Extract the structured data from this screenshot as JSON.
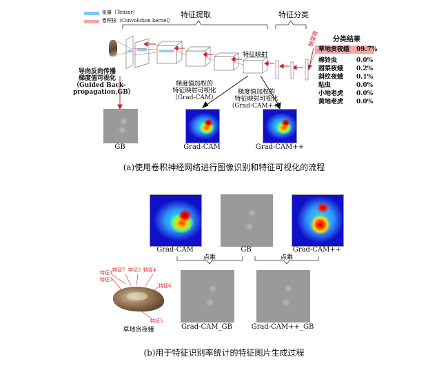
{
  "legend": {
    "tensor": "张量（Tensor）",
    "kernel": "卷积核（Convolution kernel）",
    "tensor_color": "#7fc8f0",
    "kernel_color": "#f4a6a6"
  },
  "sections": {
    "feature_extraction": "特征提取",
    "feature_classification": "特征分类",
    "feature_map": "特征映射",
    "gradient": "梯度值"
  },
  "results": {
    "title": "分类结果",
    "top": {
      "name": "草地贪夜蛾",
      "pct": "99.7%"
    },
    "items": [
      {
        "name": "棉铃虫",
        "pct": "0.0%"
      },
      {
        "name": "甜菜夜蛾",
        "pct": "0.2%"
      },
      {
        "name": "斜纹夜蛾",
        "pct": "0.1%"
      },
      {
        "name": "粘虫",
        "pct": "0.0%"
      },
      {
        "name": "小地老虎",
        "pct": "0.0%"
      },
      {
        "name": "黄地老虎",
        "pct": "0.0%"
      }
    ],
    "highlight_color": "#f4a6a6"
  },
  "annotations": {
    "gb_l1": "导向反向传播",
    "gb_l2": "梯度值可视化",
    "gb_l3": "（Guided Back-",
    "gb_l4": "propagation,GB）",
    "gc_l1": "梯度值加权的",
    "gc_l2": "特征映射可视化",
    "gc_l3": "（Grad-CAM）",
    "gcpp_l1": "梯度值加权的",
    "gcpp_l2": "特征映射可视化",
    "gcpp_l3": "（Grad-CAM++）"
  },
  "panel_a": {
    "gb": "GB",
    "gradcam": "Grad-CAM",
    "gradcampp": "Grad-CAM++",
    "caption": "(a)使用卷积神经网络进行图像识别和特征可视化的流程"
  },
  "panel_b": {
    "gradcam": "Grad-CAM",
    "gb": "GB",
    "gradcampp": "Grad-CAM++",
    "dot1": "点乘",
    "dot2": "点乘",
    "moth": "草地贪夜蛾",
    "gradcam_gb": "Grad-CAM_GB",
    "gradcampp_gb": "Grad-CAM++_GB",
    "features": {
      "f1": "特征1",
      "f2": "特征2",
      "f3": "特征3",
      "f4": "特征4",
      "f5": "特征5",
      "f6": "特征6",
      "f7": "特征7"
    },
    "caption": "(b)用于特征识别率统计的特征图片生成过程"
  }
}
